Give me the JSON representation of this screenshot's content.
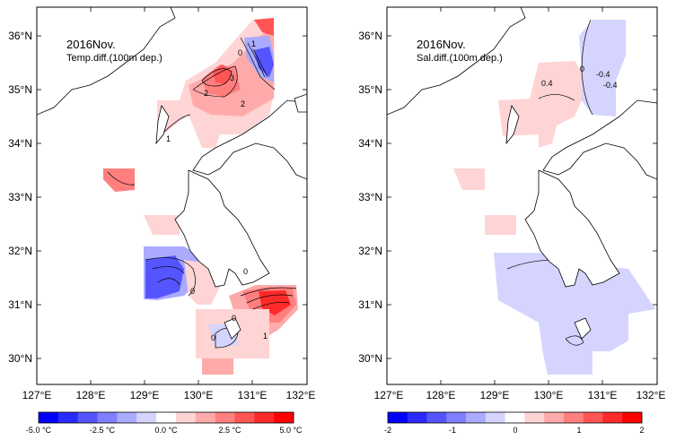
{
  "panels": [
    {
      "id": "temp",
      "title_line1": "2016Nov.",
      "title_line2": "Temp.diff.(100m dep.)",
      "lat_labels": [
        "36°N",
        "35°N",
        "34°N",
        "33°N",
        "32°N",
        "31°N",
        "30°N"
      ],
      "lon_labels": [
        "127°E",
        "128°E",
        "129°E",
        "130°E",
        "131°E",
        "132°E"
      ],
      "colorbar_labels": [
        "-5.0 °C",
        "-2.5 °C",
        "0.0 °C",
        "2.5 °C",
        "5.0 °C"
      ],
      "contour_labels": [
        "1",
        "0",
        "3",
        "2",
        "2",
        "1",
        "0",
        "0",
        "0",
        "1",
        "0"
      ]
    },
    {
      "id": "sal",
      "title_line1": "2016Nov.",
      "title_line2": "Sal.diff.(100m dep.)",
      "lat_labels": [
        "36°N",
        "35°N",
        "34°N",
        "33°N",
        "32°N",
        "31°N",
        "30°N"
      ],
      "lon_labels": [
        "127°E",
        "128°E",
        "129°E",
        "130°E",
        "131°E",
        "132°E"
      ],
      "colorbar_labels": [
        "-2",
        "-1",
        "0",
        "1",
        "2"
      ],
      "contour_labels": [
        "0.4",
        "0",
        "-0.4",
        "-0.4"
      ]
    }
  ],
  "colors": {
    "colorbar": [
      "#0000ff",
      "#2a2aff",
      "#5555ff",
      "#7f7fff",
      "#aaaaff",
      "#d4d4ff",
      "#ffffff",
      "#ffd4d4",
      "#ffaaaa",
      "#ff7f7f",
      "#ff5555",
      "#ff2a2a",
      "#ff0000"
    ],
    "land": "#ffffff",
    "coast": "#000000"
  }
}
